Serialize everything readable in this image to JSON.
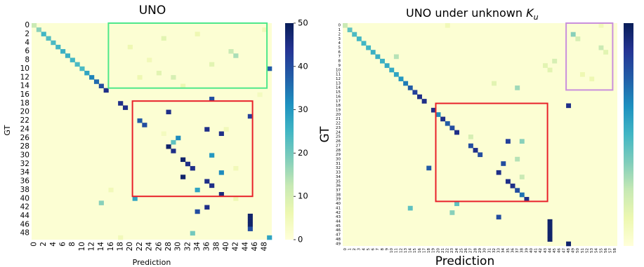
{
  "chart_data": [
    {
      "type": "heatmap",
      "title": "UNO",
      "xlabel": "Prediction",
      "ylabel": "GT",
      "n_classes": 50,
      "x_tick_labels": [
        "0",
        "2",
        "4",
        "6",
        "8",
        "10",
        "12",
        "14",
        "16",
        "18",
        "20",
        "22",
        "24",
        "26",
        "28",
        "30",
        "32",
        "34",
        "36",
        "38",
        "40",
        "42",
        "44",
        "46",
        "48"
      ],
      "y_tick_labels": [
        "0",
        "2",
        "4",
        "6",
        "8",
        "10",
        "12",
        "14",
        "16",
        "18",
        "20",
        "22",
        "24",
        "26",
        "28",
        "30",
        "32",
        "34",
        "36",
        "38",
        "40",
        "42",
        "44",
        "46",
        "48"
      ],
      "colorbar": {
        "min": 0,
        "max": 50,
        "ticks": [
          0,
          10,
          20,
          30,
          40,
          50
        ],
        "colormap": "YlGnBu"
      },
      "diagonal": [
        {
          "class": 0,
          "value": 12
        },
        {
          "class": 1,
          "value": 18
        },
        {
          "class": 2,
          "value": 25
        },
        {
          "class": 3,
          "value": 23
        },
        {
          "class": 4,
          "value": 24
        },
        {
          "class": 5,
          "value": 25
        },
        {
          "class": 6,
          "value": 26
        },
        {
          "class": 7,
          "value": 26
        },
        {
          "class": 8,
          "value": 25
        },
        {
          "class": 9,
          "value": 24
        },
        {
          "class": 10,
          "value": 24
        },
        {
          "class": 11,
          "value": 28
        },
        {
          "class": 12,
          "value": 33
        },
        {
          "class": 13,
          "value": 36
        },
        {
          "class": 14,
          "value": 40
        },
        {
          "class": 15,
          "value": 45
        }
      ],
      "off_diagonal": [
        {
          "gt": 17,
          "pred": 37,
          "value": 40
        },
        {
          "gt": 18,
          "pred": 18,
          "value": 45
        },
        {
          "gt": 19,
          "pred": 19,
          "value": 45
        },
        {
          "gt": 20,
          "pred": 28,
          "value": 45
        },
        {
          "gt": 21,
          "pred": 45,
          "value": 42
        },
        {
          "gt": 22,
          "pred": 22,
          "value": 38
        },
        {
          "gt": 23,
          "pred": 23,
          "value": 40
        },
        {
          "gt": 24,
          "pred": 36,
          "value": 45
        },
        {
          "gt": 25,
          "pred": 39,
          "value": 45
        },
        {
          "gt": 26,
          "pred": 30,
          "value": 32
        },
        {
          "gt": 27,
          "pred": 29,
          "value": 22
        },
        {
          "gt": 28,
          "pred": 28,
          "value": 48
        },
        {
          "gt": 29,
          "pred": 29,
          "value": 45
        },
        {
          "gt": 30,
          "pred": 37,
          "value": 30
        },
        {
          "gt": 31,
          "pred": 31,
          "value": 48
        },
        {
          "gt": 32,
          "pred": 32,
          "value": 45
        },
        {
          "gt": 33,
          "pred": 33,
          "value": 45
        },
        {
          "gt": 34,
          "pred": 39,
          "value": 32
        },
        {
          "gt": 35,
          "pred": 31,
          "value": 48
        },
        {
          "gt": 36,
          "pred": 36,
          "value": 45
        },
        {
          "gt": 37,
          "pred": 37,
          "value": 45
        },
        {
          "gt": 38,
          "pred": 34,
          "value": 28
        },
        {
          "gt": 39,
          "pred": 39,
          "value": 46
        },
        {
          "gt": 40,
          "pred": 21,
          "value": 28
        },
        {
          "gt": 41,
          "pred": 14,
          "value": 18
        },
        {
          "gt": 42,
          "pred": 36,
          "value": 45
        },
        {
          "gt": 43,
          "pred": 34,
          "value": 40
        },
        {
          "gt": 44,
          "pred": 45,
          "value": 48
        },
        {
          "gt": 45,
          "pred": 45,
          "value": 48
        },
        {
          "gt": 46,
          "pred": 45,
          "value": 48
        },
        {
          "gt": 47,
          "pred": 45,
          "value": 40
        },
        {
          "gt": 48,
          "pred": 33,
          "value": 20
        },
        {
          "gt": 49,
          "pred": 49,
          "value": 28
        },
        {
          "gt": 1,
          "pred": 48,
          "value": 5
        },
        {
          "gt": 2,
          "pred": 34,
          "value": 6
        },
        {
          "gt": 3,
          "pred": 27,
          "value": 8
        },
        {
          "gt": 5,
          "pred": 20,
          "value": 6
        },
        {
          "gt": 6,
          "pred": 41,
          "value": 12
        },
        {
          "gt": 7,
          "pred": 42,
          "value": 15
        },
        {
          "gt": 8,
          "pred": 24,
          "value": 5
        },
        {
          "gt": 9,
          "pred": 37,
          "value": 8
        },
        {
          "gt": 10,
          "pred": 49,
          "value": 38
        },
        {
          "gt": 11,
          "pred": 26,
          "value": 8
        },
        {
          "gt": 12,
          "pred": 22,
          "value": 6
        },
        {
          "gt": 12,
          "pred": 29,
          "value": 10
        },
        {
          "gt": 14,
          "pred": 31,
          "value": 6
        },
        {
          "gt": 16,
          "pred": 47,
          "value": 4
        },
        {
          "gt": 24,
          "pred": 40,
          "value": 5
        },
        {
          "gt": 25,
          "pred": 27,
          "value": 4
        },
        {
          "gt": 33,
          "pred": 42,
          "value": 5
        },
        {
          "gt": 38,
          "pred": 16,
          "value": 5
        },
        {
          "gt": 40,
          "pred": 42,
          "value": 6
        },
        {
          "gt": 49,
          "pred": 18,
          "value": 5
        }
      ],
      "highlight_boxes": [
        {
          "color": "#4ee88a",
          "pred_range": [
            16,
            48
          ],
          "gt_range": [
            0,
            14
          ]
        },
        {
          "color": "#e8202a",
          "pred_range": [
            21,
            45
          ],
          "gt_range": [
            18,
            39
          ]
        }
      ]
    },
    {
      "type": "heatmap",
      "title": "UNO under unknown ",
      "title_math": "K",
      "title_subscript": "u",
      "xlabel": "Prediction",
      "ylabel": "GT",
      "n_rows": 50,
      "n_cols": 59,
      "x_tick_labels": [
        "0",
        "1",
        "2",
        "3",
        "4",
        "5",
        "6",
        "7",
        "8",
        "9",
        "10",
        "11",
        "12",
        "13",
        "14",
        "15",
        "16",
        "17",
        "18",
        "19",
        "20",
        "21",
        "22",
        "23",
        "24",
        "25",
        "26",
        "27",
        "28",
        "29",
        "30",
        "31",
        "32",
        "33",
        "34",
        "35",
        "36",
        "37",
        "38",
        "39",
        "40",
        "41",
        "42",
        "43",
        "44",
        "45",
        "46",
        "47",
        "48",
        "49",
        "50",
        "51",
        "52",
        "53",
        "54",
        "55",
        "56",
        "57",
        "58"
      ],
      "y_tick_labels": [
        "0",
        "1",
        "2",
        "3",
        "4",
        "5",
        "6",
        "7",
        "8",
        "9",
        "10",
        "11",
        "12",
        "13",
        "14",
        "15",
        "16",
        "17",
        "18",
        "19",
        "20",
        "21",
        "22",
        "23",
        "24",
        "25",
        "26",
        "27",
        "28",
        "29",
        "30",
        "31",
        "32",
        "33",
        "34",
        "35",
        "36",
        "37",
        "38",
        "39",
        "40",
        "41",
        "42",
        "43",
        "44",
        "45",
        "46",
        "47",
        "48",
        "49"
      ],
      "colorbar": {
        "colormap": "YlGnBu"
      },
      "diagonal": [
        {
          "class": 0,
          "value": 12
        },
        {
          "class": 1,
          "value": 22
        },
        {
          "class": 2,
          "value": 24
        },
        {
          "class": 3,
          "value": 25
        },
        {
          "class": 4,
          "value": 25
        },
        {
          "class": 5,
          "value": 25
        },
        {
          "class": 6,
          "value": 26
        },
        {
          "class": 7,
          "value": 26
        },
        {
          "class": 8,
          "value": 26
        },
        {
          "class": 9,
          "value": 27
        },
        {
          "class": 10,
          "value": 27
        },
        {
          "class": 11,
          "value": 28
        },
        {
          "class": 12,
          "value": 30
        },
        {
          "class": 13,
          "value": 34
        },
        {
          "class": 14,
          "value": 38
        },
        {
          "class": 15,
          "value": 42
        },
        {
          "class": 16,
          "value": 45
        },
        {
          "class": 17,
          "value": 45
        }
      ],
      "off_diagonal": [
        {
          "gt": 18,
          "pred": 48,
          "value": 45
        },
        {
          "gt": 19,
          "pred": 19,
          "value": 45
        },
        {
          "gt": 20,
          "pred": 20,
          "value": 32
        },
        {
          "gt": 21,
          "pred": 21,
          "value": 45
        },
        {
          "gt": 22,
          "pred": 22,
          "value": 38
        },
        {
          "gt": 23,
          "pred": 23,
          "value": 40
        },
        {
          "gt": 24,
          "pred": 24,
          "value": 45
        },
        {
          "gt": 26,
          "pred": 35,
          "value": 42
        },
        {
          "gt": 27,
          "pred": 27,
          "value": 40
        },
        {
          "gt": 28,
          "pred": 28,
          "value": 45
        },
        {
          "gt": 29,
          "pred": 29,
          "value": 40
        },
        {
          "gt": 31,
          "pred": 34,
          "value": 40
        },
        {
          "gt": 32,
          "pred": 18,
          "value": 38
        },
        {
          "gt": 33,
          "pred": 33,
          "value": 45
        },
        {
          "gt": 35,
          "pred": 35,
          "value": 45
        },
        {
          "gt": 36,
          "pred": 36,
          "value": 45
        },
        {
          "gt": 37,
          "pred": 37,
          "value": 40
        },
        {
          "gt": 38,
          "pred": 38,
          "value": 35
        },
        {
          "gt": 39,
          "pred": 39,
          "value": 45
        },
        {
          "gt": 40,
          "pred": 24,
          "value": 22
        },
        {
          "gt": 41,
          "pred": 14,
          "value": 22
        },
        {
          "gt": 42,
          "pred": 23,
          "value": 18
        },
        {
          "gt": 43,
          "pred": 33,
          "value": 40
        },
        {
          "gt": 44,
          "pred": 44,
          "value": 48
        },
        {
          "gt": 45,
          "pred": 44,
          "value": 48
        },
        {
          "gt": 46,
          "pred": 44,
          "value": 48
        },
        {
          "gt": 47,
          "pred": 44,
          "value": 48
        },
        {
          "gt": 48,
          "pred": 44,
          "value": 48
        },
        {
          "gt": 49,
          "pred": 48,
          "value": 48
        },
        {
          "gt": 0,
          "pred": 22,
          "value": 5
        },
        {
          "gt": 0,
          "pred": 55,
          "value": 5
        },
        {
          "gt": 2,
          "pred": 49,
          "value": 18
        },
        {
          "gt": 3,
          "pred": 50,
          "value": 10
        },
        {
          "gt": 5,
          "pred": 55,
          "value": 12
        },
        {
          "gt": 6,
          "pred": 56,
          "value": 8
        },
        {
          "gt": 7,
          "pred": 11,
          "value": 14
        },
        {
          "gt": 8,
          "pred": 45,
          "value": 10
        },
        {
          "gt": 9,
          "pred": 43,
          "value": 8
        },
        {
          "gt": 10,
          "pred": 44,
          "value": 8
        },
        {
          "gt": 11,
          "pred": 51,
          "value": 6
        },
        {
          "gt": 12,
          "pred": 53,
          "value": 6
        },
        {
          "gt": 13,
          "pred": 32,
          "value": 8
        },
        {
          "gt": 14,
          "pred": 37,
          "value": 16
        },
        {
          "gt": 25,
          "pred": 27,
          "value": 10
        },
        {
          "gt": 26,
          "pred": 38,
          "value": 18
        },
        {
          "gt": 30,
          "pred": 37,
          "value": 14
        },
        {
          "gt": 34,
          "pred": 38,
          "value": 12
        }
      ],
      "highlight_boxes": [
        {
          "color": "#c98fdc",
          "pred_range": [
            48,
            57
          ],
          "gt_range": [
            0,
            14
          ]
        },
        {
          "color": "#e8202a",
          "pred_range": [
            20,
            43
          ],
          "gt_range": [
            18,
            39
          ]
        }
      ]
    }
  ]
}
